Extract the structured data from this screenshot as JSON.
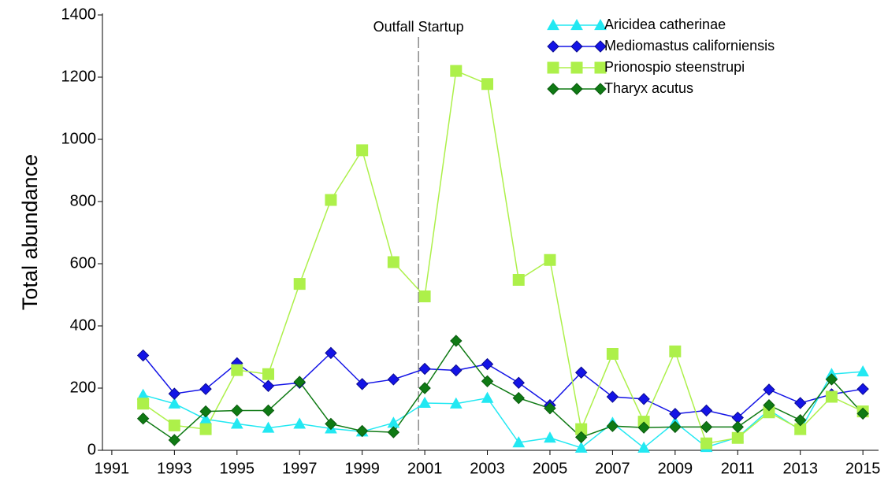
{
  "chart_data": {
    "type": "line",
    "y_label": "Total abundance",
    "x": [
      1992,
      1993,
      1994,
      1995,
      1996,
      1997,
      1998,
      1999,
      2000,
      2001,
      2002,
      2003,
      2004,
      2005,
      2006,
      2007,
      2008,
      2009,
      2010,
      2011,
      2012,
      2013,
      2014,
      2015
    ],
    "series": [
      {
        "name": "Aricidea catherinae",
        "color": "#22e8f2",
        "marker": "triangle",
        "values": [
          178,
          150,
          100,
          85,
          72,
          85,
          70,
          60,
          88,
          152,
          150,
          168,
          25,
          40,
          8,
          88,
          8,
          90,
          10,
          42,
          130,
          65,
          245,
          253
        ]
      },
      {
        "name": "Mediomastus californiensis",
        "color": "#1414e6",
        "marker": "diamond",
        "values": [
          305,
          182,
          197,
          280,
          207,
          217,
          313,
          213,
          228,
          262,
          257,
          277,
          217,
          145,
          250,
          172,
          165,
          117,
          128,
          105,
          195,
          152,
          180,
          197
        ]
      },
      {
        "name": "Prionospio steenstrupi",
        "color": "#adf04a",
        "marker": "square",
        "values": [
          150,
          80,
          68,
          258,
          245,
          535,
          805,
          965,
          605,
          495,
          1220,
          1178,
          548,
          612,
          68,
          310,
          92,
          318,
          22,
          40,
          122,
          68,
          172,
          125
        ]
      },
      {
        "name": "Tharyx acutus",
        "color": "#0f7a14",
        "marker": "diamond",
        "values": [
          102,
          33,
          125,
          128,
          128,
          220,
          85,
          62,
          58,
          200,
          352,
          222,
          168,
          135,
          42,
          78,
          73,
          75,
          75,
          75,
          145,
          97,
          228,
          118
        ]
      }
    ],
    "annotations": [
      {
        "text": "Outfall Startup",
        "x": 2000.8
      }
    ],
    "xlim": [
      1990.7,
      2015.5
    ],
    "xticks": [
      1991,
      1993,
      1995,
      1997,
      1999,
      2001,
      2003,
      2005,
      2007,
      2009,
      2011,
      2013,
      2015
    ],
    "ylim": [
      0,
      1400
    ],
    "yticks": [
      0,
      200,
      400,
      600,
      800,
      1000,
      1200,
      1400
    ],
    "legend": "top-right",
    "grid": false
  }
}
